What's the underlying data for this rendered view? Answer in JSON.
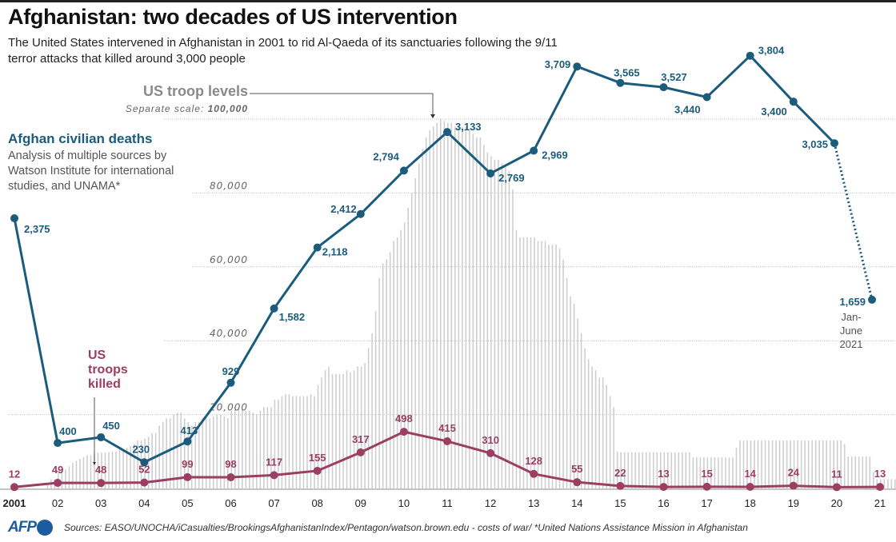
{
  "header": {
    "title": "Afghanistan: two decades of US intervention",
    "subtitle": "The United States intervened in Afghanistan in 2001 to rid Al-Qaeda of its sanctuaries following the 9/11 terror attacks that killed around 3,000 people"
  },
  "annotations": {
    "civilian_title": "Afghan civilian deaths",
    "civilian_desc": "Analysis of multiple sources by Watson Institute for international studies, and UNAMA*",
    "killed_title": "US troops killed",
    "troop_title": "US troop levels",
    "troop_sub_prefix": "Separate scale: ",
    "troop_sub_value": "100,000",
    "partial_year": "Jan-June 2021"
  },
  "footer": {
    "logo": "AFP",
    "sources": "Sources: EASO/UNOCHA/iCasualties/BrookingsAfghanistanIndex/Pentagon/watson.brown.edu - costs of war/ *United Nations Assistance Mission in Afghanistan"
  },
  "colors": {
    "civilian": "#1b5c7d",
    "killed": "#9c3d62",
    "troops": "#cfcfcf",
    "grid": "#bbbbbb"
  },
  "chart_data": {
    "type": "line",
    "x": [
      "2001",
      "02",
      "03",
      "04",
      "05",
      "06",
      "07",
      "08",
      "09",
      "10",
      "11",
      "12",
      "13",
      "14",
      "15",
      "16",
      "17",
      "18",
      "19",
      "20",
      "21"
    ],
    "series": [
      {
        "name": "Afghan civilian deaths",
        "values": [
          2375,
          400,
          450,
          230,
          413,
          929,
          1582,
          2118,
          2412,
          2794,
          3133,
          2769,
          2969,
          3709,
          3565,
          3527,
          3440,
          3804,
          3400,
          3035,
          1659
        ],
        "labels": [
          "2,375",
          "400",
          "450",
          "230",
          "413",
          "929",
          "1,582",
          "2,118",
          "2,412",
          "2,794",
          "3,133",
          "2,769",
          "2,969",
          "3,709",
          "3,565",
          "3,527",
          "3,440",
          "3,804",
          "3,400",
          "3,035",
          "1,659"
        ],
        "note_last": "Jan-June 2021 (dotted)"
      },
      {
        "name": "US troops killed",
        "values": [
          12,
          49,
          48,
          52,
          99,
          98,
          117,
          155,
          317,
          498,
          415,
          310,
          128,
          55,
          22,
          13,
          15,
          14,
          24,
          11,
          13
        ]
      }
    ],
    "troop_levels": {
      "name": "US troop levels",
      "type": "bar",
      "scale": "separate",
      "frequency": "monthly",
      "ticks": [
        20000,
        40000,
        60000,
        80000,
        100000
      ],
      "tick_labels": [
        "20,000",
        "40,000",
        "60,000",
        "80,000",
        "100,000"
      ],
      "ylim": [
        0,
        100000
      ],
      "by_year": {
        "2001": [
          0,
          0,
          0,
          0,
          0,
          0,
          0,
          0,
          0,
          1300,
          2500,
          2500
        ],
        "2002": [
          5200,
          5200,
          5200,
          6000,
          7000,
          7500,
          8000,
          8500,
          9000,
          9000,
          9500,
          9700
        ],
        "2003": [
          9700,
          9700,
          9800,
          10000,
          10000,
          10500,
          10500,
          11000,
          11500,
          12000,
          13000,
          13000
        ],
        "2004": [
          13500,
          14000,
          15000,
          15000,
          17000,
          18000,
          19000,
          19000,
          20000,
          20500,
          20500,
          19000
        ],
        "2005": [
          18000,
          17000,
          18000,
          18000,
          19000,
          19000,
          19000,
          19500,
          20000,
          20000,
          19500,
          19000
        ],
        "2006": [
          21000,
          22000,
          22000,
          21500,
          21000,
          21000,
          20500,
          20000,
          21000,
          22000,
          22000,
          22000
        ],
        "2007": [
          24000,
          24000,
          25000,
          25500,
          25500,
          25000,
          25000,
          25000,
          25000,
          25000,
          25500,
          25000
        ],
        "2008": [
          28000,
          30000,
          32000,
          33000,
          31000,
          31000,
          31000,
          31000,
          32000,
          31500,
          32000,
          33000
        ],
        "2009": [
          33000,
          34000,
          38000,
          42000,
          48000,
          57000,
          61000,
          62000,
          64000,
          67000,
          68000,
          70000
        ],
        "2010": [
          72000,
          76000,
          80000,
          84000,
          88000,
          92000,
          95000,
          97000,
          98000,
          99000,
          100000,
          99500
        ],
        "2011": [
          99000,
          99000,
          98000,
          98000,
          98000,
          98000,
          97000,
          96000,
          95000,
          95000,
          93000,
          91000
        ],
        "2012": [
          90000,
          89000,
          89000,
          88000,
          87000,
          86000,
          81000,
          70000,
          68000,
          68000,
          68000,
          68000
        ],
        "2013": [
          68000,
          67000,
          67000,
          67000,
          66000,
          66000,
          66000,
          65000,
          62000,
          57000,
          52000,
          50000
        ],
        "2014": [
          46000,
          42000,
          38000,
          35000,
          33000,
          32000,
          30000,
          30000,
          28000,
          25000,
          22000,
          10000
        ],
        "2015": [
          9800,
          9800,
          9800,
          9800,
          9800,
          9800,
          9800,
          9800,
          9800,
          9800,
          9800,
          9800
        ],
        "2016": [
          9800,
          9800,
          9800,
          9800,
          9800,
          9800,
          9800,
          9800,
          8400,
          8400,
          8400,
          8400
        ],
        "2017": [
          8400,
          8400,
          8400,
          8400,
          8400,
          8400,
          8400,
          8400,
          11000,
          13000,
          13000,
          13000
        ],
        "2018": [
          13000,
          13000,
          13000,
          13000,
          13000,
          13000,
          13000,
          13000,
          13000,
          13000,
          13000,
          13000
        ],
        "2019": [
          13000,
          13000,
          13000,
          13000,
          13000,
          13000,
          13000,
          13000,
          13000,
          13000,
          13000,
          13000
        ],
        "2020": [
          13000,
          13000,
          12000,
          8600,
          8600,
          8600,
          8600,
          8600,
          8600,
          8600,
          4500,
          2500
        ],
        "2021": [
          2500,
          2500,
          2500,
          2500,
          2500,
          2500
        ]
      }
    },
    "ylim": [
      0,
      4200
    ],
    "xlabel": "",
    "ylabel": ""
  }
}
